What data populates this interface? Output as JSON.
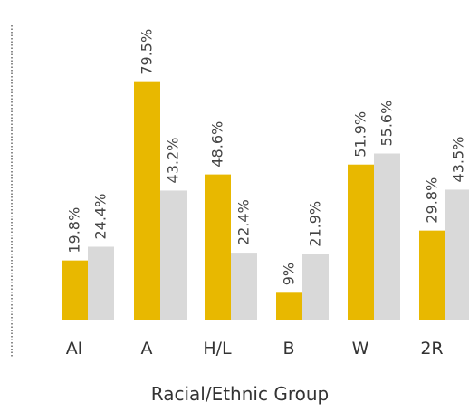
{
  "chart_data": {
    "type": "bar",
    "title": "",
    "xlabel": "Racial/Ethnic Group",
    "ylabel": "",
    "categories": [
      "AI",
      "A",
      "H/L",
      "B",
      "W",
      "2R"
    ],
    "series": [
      {
        "values": [
          19.8,
          79.5,
          48.6,
          9,
          51.9,
          29.8
        ],
        "labels": [
          "19.8%",
          "79.5%",
          "48.6%",
          "9%",
          "51.9%",
          "29.8%"
        ],
        "color": "#E8B800"
      },
      {
        "values": [
          24.4,
          43.2,
          22.4,
          21.9,
          55.6,
          43.5
        ],
        "labels": [
          "24.4%",
          "43.2%",
          "22.4%",
          "21.9%",
          "55.6%",
          "43.5%"
        ],
        "color": "#D9D9D9"
      }
    ],
    "ylim": [
      0,
      100
    ],
    "grid": false,
    "legend": "none",
    "data_labels_rotated": true
  }
}
